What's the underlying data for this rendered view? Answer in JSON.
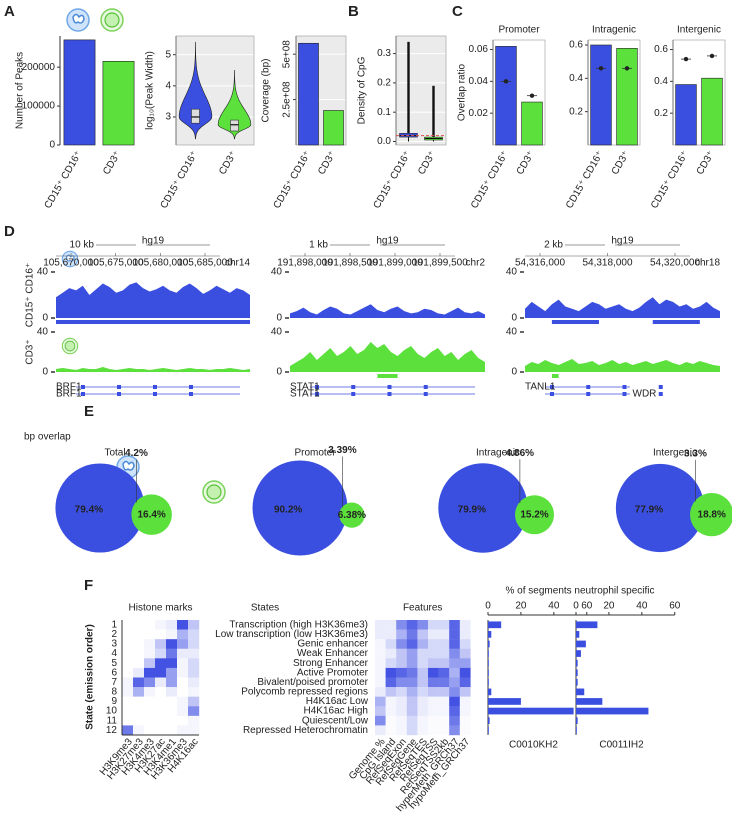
{
  "panel_labels": [
    "A",
    "B",
    "C",
    "D",
    "E",
    "F"
  ],
  "chart_data": [
    {
      "type": "bar",
      "ylabel": "Number of Peaks",
      "categories": [
        "CD15⁺ CD16⁺",
        "CD3⁺"
      ],
      "values": [
        270000,
        215000
      ],
      "colors": [
        "#3a4fe0",
        "#5be03c"
      ],
      "ylim": [
        0,
        280000
      ],
      "yticks": [
        0,
        100000,
        200000
      ],
      "grid": false
    },
    {
      "type": "violin",
      "ylabel": "log₁₀(Peak Width)",
      "categories": [
        "CD15⁺ CD16⁺",
        "CD3⁺"
      ],
      "min": [
        2.3,
        2.3
      ],
      "q1": [
        2.8,
        2.55
      ],
      "median": [
        3.0,
        2.75
      ],
      "q3": [
        3.25,
        2.9
      ],
      "max": [
        5.4,
        4.5
      ],
      "colors": [
        "#3a4fe0",
        "#5be03c"
      ],
      "ylim": [
        2.1,
        5.6
      ],
      "yticks": [
        3,
        4,
        5
      ],
      "grid": true
    },
    {
      "type": "bar",
      "ylabel": "Coverage (bp)",
      "categories": [
        "CD15⁺ CD16⁺",
        "CD3⁺"
      ],
      "values": [
        560000000,
        190000000
      ],
      "colors": [
        "#3a4fe0",
        "#5be03c"
      ],
      "ylim": [
        0,
        600000000
      ],
      "yticks": [
        {
          "value": 250000000,
          "label": "2.5e+08"
        },
        {
          "value": 500000000,
          "label": "5e+08"
        }
      ],
      "grid": true
    },
    {
      "type": "box",
      "ylabel": "Density of CpG",
      "categories": [
        "CD15⁺ CD16⁺",
        "CD3⁺"
      ],
      "min": [
        0,
        0
      ],
      "q1": [
        0.015,
        0.005
      ],
      "median": [
        0.02,
        0.01
      ],
      "q3": [
        0.028,
        0.015
      ],
      "max": [
        0.34,
        0.19
      ],
      "reference_line": 0.02,
      "reference_color": "#e0524a",
      "colors": [
        "#3a4fe0",
        "#5be03c"
      ],
      "ylim": [
        -0.012,
        0.36
      ],
      "yticks": [
        {
          "value": 0,
          "label": "0.0"
        },
        0.1,
        0.2,
        0.3
      ],
      "grid": true
    },
    {
      "type": "bar",
      "title": "Promoter",
      "ylabel": "Overlap ratio",
      "categories": [
        "CD15⁺ CD16⁺",
        "CD3⁺"
      ],
      "values": [
        0.062,
        0.027
      ],
      "points": [
        0.04,
        0.031
      ],
      "colors": [
        "#3a4fe0",
        "#5be03c"
      ],
      "ylim": [
        0,
        0.066
      ],
      "yticks": [
        0.02,
        0.04,
        0.06
      ],
      "grid": false
    },
    {
      "type": "bar",
      "title": "Intragenic",
      "categories": [
        "CD15⁺ CD16⁺",
        "CD3⁺"
      ],
      "values": [
        0.6,
        0.58
      ],
      "points": [
        0.46,
        0.46
      ],
      "colors": [
        "#3a4fe0",
        "#5be03c"
      ],
      "ylim": [
        0,
        0.63
      ],
      "yticks": [
        0.2,
        0.4,
        0.6
      ],
      "grid": false
    },
    {
      "type": "bar",
      "title": "Intergenic",
      "categories": [
        "CD15⁺ CD16⁺",
        "CD3⁺"
      ],
      "values": [
        0.38,
        0.42
      ],
      "points": [
        0.54,
        0.56
      ],
      "colors": [
        "#3a4fe0",
        "#5be03c"
      ],
      "ylim": [
        0,
        0.66
      ],
      "yticks": [
        0.2,
        0.4,
        0.6
      ],
      "grid": false
    },
    {
      "type": "tracks",
      "track_names": [
        "CD15⁺ CD16⁺",
        "CD3⁺"
      ],
      "colors": [
        "#3a4fe0",
        "#5be03c"
      ],
      "ylim": [
        0,
        40
      ],
      "yticks": [
        0,
        40
      ],
      "loci": [
        {
          "scale": "10 kb",
          "assembly": "hg19",
          "positions": [
            "105,670,000",
            "105,675,000",
            "105,680,000",
            "105,685,000"
          ],
          "chromosome": "chr14",
          "signal": [
            [
              18,
              22,
              26,
              24,
              28,
              20,
              25,
              30,
              27,
              22,
              24,
              29,
              31,
              26,
              23,
              25,
              28,
              24,
              22,
              27,
              30,
              26,
              21,
              24,
              28,
              25,
              22,
              26,
              24,
              20
            ],
            [
              3,
              4,
              3,
              2,
              4,
              3,
              3,
              5,
              3,
              2,
              3,
              4,
              3,
              3,
              2,
              3,
              4,
              3,
              2,
              3,
              4,
              3,
              3,
              2,
              3,
              3,
              4,
              3,
              2,
              3
            ]
          ],
          "peaks": [
            [
              [
                0,
                29
              ]
            ],
            []
          ],
          "genes": [
            "BRF1",
            "BRF1"
          ]
        },
        {
          "scale": "1 kb",
          "assembly": "hg19",
          "positions": [
            "191,898,000",
            "191,898,500",
            "191,899,000",
            "191,899,500"
          ],
          "chromosome": "chr2",
          "signal": [
            [
              4,
              6,
              9,
              5,
              3,
              7,
              10,
              8,
              4,
              3,
              6,
              9,
              12,
              7,
              5,
              8,
              10,
              6,
              4,
              5,
              8,
              7,
              4,
              3,
              6,
              9,
              5,
              4,
              6,
              3
            ],
            [
              6,
              10,
              14,
              20,
              12,
              18,
              24,
              16,
              20,
              26,
              18,
              22,
              30,
              24,
              28,
              20,
              16,
              22,
              26,
              18,
              14,
              20,
              24,
              16,
              20,
              12,
              18,
              22,
              14,
              10
            ]
          ],
          "peaks": [
            [],
            [
              [
                13,
                16
              ]
            ]
          ],
          "genes": [
            "STAT1",
            "STAT1"
          ]
        },
        {
          "scale": "2 kb",
          "assembly": "hg19",
          "positions": [
            "54,316,000",
            "54,318,000",
            "54,320,000"
          ],
          "chromosome": "chr18",
          "signal": [
            [
              8,
              14,
              10,
              6,
              12,
              16,
              10,
              8,
              6,
              10,
              14,
              12,
              8,
              10,
              12,
              8,
              6,
              9,
              14,
              18,
              12,
              16,
              14,
              10,
              12,
              8,
              10,
              14,
              9,
              6
            ],
            [
              6,
              10,
              8,
              12,
              9,
              7,
              10,
              13,
              8,
              9,
              11,
              7,
              9,
              12,
              8,
              10,
              7,
              9,
              11,
              8,
              10,
              12,
              9,
              7,
              10,
              8,
              11,
              9,
              7,
              6
            ]
          ],
          "peaks": [
            [
              [
                4,
                11
              ],
              [
                19,
                26
              ]
            ],
            [
              [
                4,
                5
              ]
            ]
          ],
          "genes": [
            "TANL1",
            "WDR"
          ]
        }
      ]
    },
    {
      "type": "venn",
      "title": "bp overlap",
      "colors": [
        "#3a4fe0",
        "#5be03c"
      ],
      "sets": [
        {
          "name": "Total",
          "values": [
            79.4,
            16.4,
            4.2
          ],
          "value_labels": [
            "79.4%",
            "16.4%",
            "4.2%"
          ]
        },
        {
          "name": "Promoter",
          "values": [
            90.2,
            6.38,
            3.39
          ],
          "value_labels": [
            "90.2%",
            "6.38%",
            "3.39%"
          ]
        },
        {
          "name": "Intragenic",
          "values": [
            79.9,
            15.2,
            4.86
          ],
          "value_labels": [
            "79.9%",
            "15.2%",
            "4.86%"
          ]
        },
        {
          "name": "Intergenic",
          "values": [
            77.9,
            18.8,
            3.3
          ],
          "value_labels": [
            "77.9%",
            "18.8%",
            "3.3%"
          ]
        }
      ]
    },
    {
      "type": "heatmap",
      "title": "Histone marks",
      "ylabel": "State (emission order)",
      "color": "#2e3fe0",
      "categories": [
        "1",
        "2",
        "3",
        "4",
        "5",
        "6",
        "7",
        "8",
        "9",
        "10",
        "11",
        "12"
      ],
      "state_title": "States",
      "state_names": [
        "Transcription (high H3K36me3)",
        "Low transcription (low H3K36me3)",
        "Genic enhancer",
        "Weak Enhancer",
        "Strong Enhancer",
        "Active Promoter",
        "Bivalent/poised promoter",
        "Polycomb repressed regions",
        "H4K16ac Low",
        "H4K16ac High",
        "Quiescent/Low",
        "Repressed Heterochromatin"
      ],
      "columns": [
        "H3K9me3",
        "H3K27me3",
        "H3K4me3",
        "H3K27ac",
        "H3K4me1",
        "H3K36me3",
        "H4K16ac"
      ],
      "values": [
        [
          0,
          0,
          0,
          0.05,
          0.1,
          0.9,
          0.3
        ],
        [
          0,
          0,
          0,
          0,
          0.05,
          0.4,
          0.2
        ],
        [
          0,
          0,
          0.05,
          0.3,
          0.9,
          0.5,
          0.2
        ],
        [
          0,
          0,
          0.05,
          0.2,
          0.7,
          0.1,
          0.1
        ],
        [
          0,
          0,
          0.3,
          0.9,
          0.9,
          0.05,
          0.2
        ],
        [
          0,
          0.1,
          0.9,
          0.9,
          0.5,
          0.05,
          0.2
        ],
        [
          0.05,
          0.8,
          0.6,
          0.1,
          0.5,
          0,
          0.1
        ],
        [
          0.05,
          0.4,
          0.05,
          0,
          0.1,
          0,
          0.05
        ],
        [
          0,
          0,
          0,
          0,
          0,
          0.05,
          0.3
        ],
        [
          0,
          0,
          0,
          0,
          0,
          0.05,
          0.6
        ],
        [
          0,
          0,
          0,
          0,
          0,
          0,
          0.05
        ],
        [
          0.7,
          0.05,
          0,
          0,
          0,
          0.05,
          0.05
        ]
      ]
    },
    {
      "type": "heatmap",
      "title": "Features",
      "color": "#2e3fe0",
      "columns": [
        "Genome %",
        "CpG Island",
        "RefSeqExon",
        "RefSeqGene",
        "RefSeqTES",
        "RefSeqTSS",
        "RefSeqTSS2kb",
        "hyperMeth_GRCh37",
        "hypoMeth_GRCh37"
      ],
      "values": [
        [
          0.1,
          0.1,
          0.6,
          0.8,
          0.6,
          0.2,
          0.2,
          0.8,
          0.1
        ],
        [
          0.1,
          0.1,
          0.4,
          0.7,
          0.3,
          0.1,
          0.1,
          0.8,
          0.1
        ],
        [
          0.05,
          0.2,
          0.6,
          0.8,
          0.4,
          0.2,
          0.2,
          0.8,
          0.2
        ],
        [
          0.05,
          0.1,
          0.3,
          0.5,
          0.2,
          0.2,
          0.2,
          0.6,
          0.3
        ],
        [
          0.05,
          0.2,
          0.3,
          0.5,
          0.2,
          0.3,
          0.3,
          0.5,
          0.5
        ],
        [
          0.05,
          0.9,
          0.8,
          0.7,
          0.3,
          0.9,
          0.8,
          0.4,
          0.9
        ],
        [
          0.05,
          0.8,
          0.6,
          0.6,
          0.3,
          0.7,
          0.7,
          0.5,
          0.8
        ],
        [
          0.1,
          0.3,
          0.2,
          0.4,
          0.2,
          0.3,
          0.3,
          0.6,
          0.3
        ],
        [
          0.4,
          0.05,
          0.1,
          0.3,
          0.1,
          0.05,
          0.05,
          0.9,
          0.05
        ],
        [
          0.3,
          0.05,
          0.1,
          0.3,
          0.1,
          0.05,
          0.05,
          0.8,
          0.05
        ],
        [
          0.6,
          0.02,
          0.05,
          0.2,
          0.05,
          0.02,
          0.02,
          0.7,
          0.02
        ],
        [
          0.1,
          0.02,
          0.05,
          0.2,
          0.05,
          0.02,
          0.02,
          0.6,
          0.02
        ]
      ]
    },
    {
      "type": "hbar",
      "title": "% of segments neutrophil specific",
      "xlabel": "C0010KH2",
      "color": "#3a4fe0",
      "values": [
        8,
        2,
        1,
        0.5,
        0.5,
        0.5,
        0.5,
        2,
        20,
        52,
        1,
        0.5
      ],
      "xlim": [
        0,
        65
      ],
      "xticks": [
        0,
        20,
        40,
        60
      ]
    },
    {
      "type": "hbar",
      "xlabel": "C0011IH2",
      "color": "#3a4fe0",
      "values": [
        13,
        2,
        6,
        3,
        1,
        1,
        1,
        5,
        16,
        44,
        1,
        0.5
      ],
      "xlim": [
        0,
        65
      ],
      "xticks": [
        0,
        20,
        40,
        60
      ]
    }
  ]
}
